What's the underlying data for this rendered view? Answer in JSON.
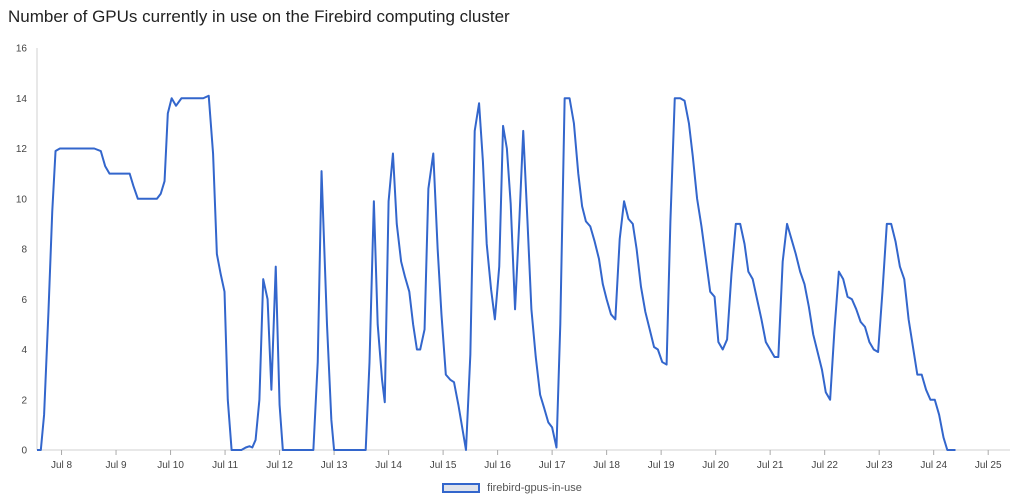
{
  "chart_data": {
    "type": "line",
    "title": "Number of GPUs currently in use on the Firebird computing cluster",
    "xlabel": "",
    "ylabel": "",
    "ylim": [
      0,
      16
    ],
    "yticks": [
      0,
      2,
      4,
      6,
      8,
      10,
      12,
      14,
      16
    ],
    "xlim": [
      7.55,
      25.4
    ],
    "xticks": [
      {
        "label": "Jul 8",
        "x": 8
      },
      {
        "label": "Jul 9",
        "x": 9
      },
      {
        "label": "Jul 10",
        "x": 10
      },
      {
        "label": "Jul 11",
        "x": 11
      },
      {
        "label": "Jul 12",
        "x": 12
      },
      {
        "label": "Jul 13",
        "x": 13
      },
      {
        "label": "Jul 14",
        "x": 14
      },
      {
        "label": "Jul 15",
        "x": 15
      },
      {
        "label": "Jul 16",
        "x": 16
      },
      {
        "label": "Jul 17",
        "x": 17
      },
      {
        "label": "Jul 18",
        "x": 18
      },
      {
        "label": "Jul 19",
        "x": 19
      },
      {
        "label": "Jul 20",
        "x": 20
      },
      {
        "label": "Jul 21",
        "x": 21
      },
      {
        "label": "Jul 22",
        "x": 22
      },
      {
        "label": "Jul 23",
        "x": 23
      },
      {
        "label": "Jul 24",
        "x": 24
      },
      {
        "label": "Jul 25",
        "x": 25
      }
    ],
    "grid": false,
    "legend_position": "bottom",
    "series": [
      {
        "name": "firebird-gpus-in-use",
        "color": "#3366cc",
        "points": [
          [
            7.55,
            0
          ],
          [
            7.62,
            0
          ],
          [
            7.68,
            1.4
          ],
          [
            7.76,
            5.5
          ],
          [
            7.83,
            9.5
          ],
          [
            7.89,
            11.9
          ],
          [
            7.97,
            12
          ],
          [
            8.2,
            12
          ],
          [
            8.4,
            12
          ],
          [
            8.6,
            12
          ],
          [
            8.72,
            11.9
          ],
          [
            8.8,
            11.3
          ],
          [
            8.88,
            11
          ],
          [
            9.0,
            11
          ],
          [
            9.15,
            11
          ],
          [
            9.25,
            11
          ],
          [
            9.32,
            10.5
          ],
          [
            9.4,
            10
          ],
          [
            9.55,
            10
          ],
          [
            9.65,
            10
          ],
          [
            9.75,
            10
          ],
          [
            9.82,
            10.2
          ],
          [
            9.89,
            10.7
          ],
          [
            9.95,
            13.4
          ],
          [
            10.02,
            14
          ],
          [
            10.1,
            13.7
          ],
          [
            10.2,
            14
          ],
          [
            10.35,
            14
          ],
          [
            10.5,
            14
          ],
          [
            10.6,
            14
          ],
          [
            10.7,
            14.1
          ],
          [
            10.78,
            11.8
          ],
          [
            10.85,
            7.8
          ],
          [
            10.92,
            7
          ],
          [
            10.99,
            6.3
          ],
          [
            11.05,
            2
          ],
          [
            11.12,
            0
          ],
          [
            11.2,
            0
          ],
          [
            11.3,
            0
          ],
          [
            11.38,
            0.1
          ],
          [
            11.45,
            0.15
          ],
          [
            11.5,
            0.1
          ],
          [
            11.56,
            0.4
          ],
          [
            11.63,
            2
          ],
          [
            11.7,
            6.8
          ],
          [
            11.78,
            6
          ],
          [
            11.85,
            2.4
          ],
          [
            11.93,
            7.3
          ],
          [
            12.0,
            1.8
          ],
          [
            12.06,
            0
          ],
          [
            12.2,
            0
          ],
          [
            12.5,
            0
          ],
          [
            12.62,
            0
          ],
          [
            12.7,
            3.5
          ],
          [
            12.77,
            11.1
          ],
          [
            12.87,
            5
          ],
          [
            12.95,
            1.2
          ],
          [
            13.0,
            0
          ],
          [
            13.15,
            0
          ],
          [
            13.35,
            0
          ],
          [
            13.5,
            0
          ],
          [
            13.58,
            0
          ],
          [
            13.65,
            3.5
          ],
          [
            13.73,
            9.9
          ],
          [
            13.8,
            5
          ],
          [
            13.88,
            2.8
          ],
          [
            13.93,
            1.9
          ],
          [
            14.0,
            9.9
          ],
          [
            14.08,
            11.8
          ],
          [
            14.15,
            9
          ],
          [
            14.23,
            7.5
          ],
          [
            14.3,
            6.9
          ],
          [
            14.38,
            6.3
          ],
          [
            14.45,
            5
          ],
          [
            14.52,
            4
          ],
          [
            14.58,
            4
          ],
          [
            14.66,
            4.8
          ],
          [
            14.73,
            10.4
          ],
          [
            14.82,
            11.8
          ],
          [
            14.9,
            8
          ],
          [
            14.97,
            5.4
          ],
          [
            15.05,
            3
          ],
          [
            15.13,
            2.8
          ],
          [
            15.2,
            2.7
          ],
          [
            15.28,
            1.8
          ],
          [
            15.35,
            0.9
          ],
          [
            15.42,
            0
          ],
          [
            15.5,
            3.8
          ],
          [
            15.58,
            12.7
          ],
          [
            15.66,
            13.8
          ],
          [
            15.73,
            11.5
          ],
          [
            15.8,
            8.2
          ],
          [
            15.88,
            6.4
          ],
          [
            15.95,
            5.2
          ],
          [
            16.03,
            7.3
          ],
          [
            16.1,
            12.9
          ],
          [
            16.17,
            12
          ],
          [
            16.24,
            9.8
          ],
          [
            16.32,
            5.6
          ],
          [
            16.4,
            9.2
          ],
          [
            16.47,
            12.7
          ],
          [
            16.55,
            9
          ],
          [
            16.62,
            5.6
          ],
          [
            16.7,
            3.7
          ],
          [
            16.78,
            2.2
          ],
          [
            16.85,
            1.7
          ],
          [
            16.93,
            1.1
          ],
          [
            17.0,
            0.9
          ],
          [
            17.08,
            0.1
          ],
          [
            17.15,
            5
          ],
          [
            17.23,
            14
          ],
          [
            17.32,
            14
          ],
          [
            17.4,
            13
          ],
          [
            17.48,
            11
          ],
          [
            17.55,
            9.7
          ],
          [
            17.62,
            9.1
          ],
          [
            17.7,
            8.9
          ],
          [
            17.78,
            8.3
          ],
          [
            17.86,
            7.6
          ],
          [
            17.93,
            6.6
          ],
          [
            18.0,
            6
          ],
          [
            18.08,
            5.4
          ],
          [
            18.16,
            5.2
          ],
          [
            18.24,
            8.4
          ],
          [
            18.32,
            9.9
          ],
          [
            18.4,
            9.2
          ],
          [
            18.48,
            9
          ],
          [
            18.55,
            8
          ],
          [
            18.63,
            6.5
          ],
          [
            18.71,
            5.5
          ],
          [
            18.79,
            4.8
          ],
          [
            18.87,
            4.1
          ],
          [
            18.94,
            4
          ],
          [
            19.02,
            3.5
          ],
          [
            19.1,
            3.4
          ],
          [
            19.17,
            9.1
          ],
          [
            19.25,
            14
          ],
          [
            19.35,
            14
          ],
          [
            19.43,
            13.9
          ],
          [
            19.51,
            13
          ],
          [
            19.58,
            11.7
          ],
          [
            19.66,
            10
          ],
          [
            19.74,
            8.9
          ],
          [
            19.82,
            7.6
          ],
          [
            19.9,
            6.3
          ],
          [
            19.98,
            6.1
          ],
          [
            20.05,
            4.3
          ],
          [
            20.13,
            4
          ],
          [
            20.21,
            4.4
          ],
          [
            20.29,
            7
          ],
          [
            20.37,
            9
          ],
          [
            20.45,
            9
          ],
          [
            20.53,
            8.2
          ],
          [
            20.6,
            7.1
          ],
          [
            20.68,
            6.8
          ],
          [
            20.76,
            6
          ],
          [
            20.84,
            5.2
          ],
          [
            20.92,
            4.3
          ],
          [
            21.0,
            4
          ],
          [
            21.08,
            3.7
          ],
          [
            21.15,
            3.7
          ],
          [
            21.23,
            7.5
          ],
          [
            21.31,
            9
          ],
          [
            21.39,
            8.4
          ],
          [
            21.47,
            7.8
          ],
          [
            21.55,
            7.1
          ],
          [
            21.63,
            6.6
          ],
          [
            21.71,
            5.7
          ],
          [
            21.79,
            4.6
          ],
          [
            21.87,
            3.9
          ],
          [
            21.95,
            3.2
          ],
          [
            22.02,
            2.3
          ],
          [
            22.1,
            2
          ],
          [
            22.18,
            4.8
          ],
          [
            22.26,
            7.1
          ],
          [
            22.34,
            6.8
          ],
          [
            22.42,
            6.1
          ],
          [
            22.5,
            6
          ],
          [
            22.58,
            5.6
          ],
          [
            22.66,
            5.1
          ],
          [
            22.74,
            4.9
          ],
          [
            22.82,
            4.3
          ],
          [
            22.9,
            4
          ],
          [
            22.98,
            3.9
          ],
          [
            23.06,
            6.3
          ],
          [
            23.14,
            9
          ],
          [
            23.22,
            9
          ],
          [
            23.3,
            8.3
          ],
          [
            23.38,
            7.3
          ],
          [
            23.46,
            6.8
          ],
          [
            23.54,
            5.2
          ],
          [
            23.62,
            4.1
          ],
          [
            23.7,
            3
          ],
          [
            23.78,
            3
          ],
          [
            23.86,
            2.4
          ],
          [
            23.94,
            2
          ],
          [
            24.02,
            2
          ],
          [
            24.1,
            1.4
          ],
          [
            24.18,
            0.5
          ],
          [
            24.25,
            0
          ],
          [
            24.33,
            0
          ],
          [
            24.4,
            0
          ]
        ]
      }
    ]
  }
}
